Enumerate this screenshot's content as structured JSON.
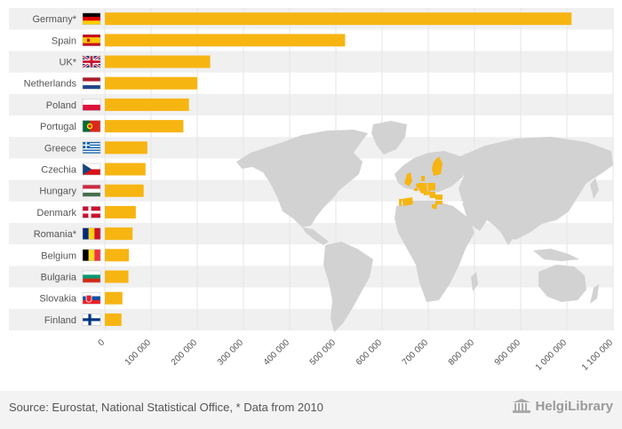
{
  "chart_data": {
    "type": "bar",
    "orientation": "horizontal",
    "categories": [
      "Germany*",
      "Spain",
      "UK*",
      "Netherlands",
      "Poland",
      "Portugal",
      "Greece",
      "Czechia",
      "Hungary",
      "Denmark",
      "Romania*",
      "Belgium",
      "Bulgaria",
      "Slovakia",
      "Finland"
    ],
    "values": [
      1010000,
      520000,
      228000,
      200000,
      182000,
      170000,
      92000,
      88000,
      84000,
      67000,
      60000,
      52000,
      51000,
      38000,
      36000
    ],
    "xlim": [
      0,
      1100000
    ],
    "xticks": [
      0,
      100000,
      200000,
      300000,
      400000,
      500000,
      600000,
      700000,
      800000,
      900000,
      1000000,
      1100000
    ],
    "xtick_labels": [
      "0",
      "100 000",
      "200 000",
      "300 000",
      "400 000",
      "500 000",
      "600 000",
      "700 000",
      "800 000",
      "900 000",
      "1 000 000",
      "1 100 000"
    ],
    "grid": true,
    "bar_color": "#f7b512",
    "band_color": "#f0f0f0",
    "grid_color": "#e6e6e6"
  },
  "flags": [
    {
      "country": "Germany",
      "type": "h",
      "colors": [
        "#000000",
        "#dd0000",
        "#ffce00"
      ]
    },
    {
      "country": "Spain",
      "type": "spain",
      "colors": [
        "#c60b1e",
        "#ffc400",
        "#c60b1e"
      ]
    },
    {
      "country": "UK",
      "type": "uk",
      "colors": [
        "#012169",
        "#ffffff",
        "#c8102e"
      ]
    },
    {
      "country": "Netherlands",
      "type": "h",
      "colors": [
        "#ae1c28",
        "#ffffff",
        "#21468b"
      ]
    },
    {
      "country": "Poland",
      "type": "h",
      "colors": [
        "#ffffff",
        "#dc143c"
      ]
    },
    {
      "country": "Portugal",
      "type": "portugal",
      "colors": [
        "#046a38",
        "#da291c",
        "#ffe900"
      ]
    },
    {
      "country": "Greece",
      "type": "greece",
      "colors": [
        "#0d5eaf",
        "#ffffff"
      ]
    },
    {
      "country": "Czechia",
      "type": "czech",
      "colors": [
        "#ffffff",
        "#d7141a",
        "#11457e"
      ]
    },
    {
      "country": "Hungary",
      "type": "h",
      "colors": [
        "#cd2a3e",
        "#ffffff",
        "#436f4d"
      ]
    },
    {
      "country": "Denmark",
      "type": "nordic",
      "colors": [
        "#c8102e",
        "#ffffff"
      ]
    },
    {
      "country": "Romania",
      "type": "v",
      "colors": [
        "#002b7f",
        "#fcd116",
        "#ce1126"
      ]
    },
    {
      "country": "Belgium",
      "type": "v",
      "colors": [
        "#000000",
        "#fdda24",
        "#ef3340"
      ]
    },
    {
      "country": "Bulgaria",
      "type": "h",
      "colors": [
        "#ffffff",
        "#00966e",
        "#d62612"
      ]
    },
    {
      "country": "Slovakia",
      "type": "slovakia",
      "colors": [
        "#ffffff",
        "#0b4ea2",
        "#ee1c25"
      ]
    },
    {
      "country": "Finland",
      "type": "nordic",
      "colors": [
        "#ffffff",
        "#003580"
      ]
    }
  ],
  "map": {
    "land_color": "#d2d2d2",
    "highlight_color": "#f7b512",
    "highlighted_countries": [
      "Germany",
      "Spain",
      "UK",
      "Netherlands",
      "Poland",
      "Portugal",
      "Greece",
      "Czechia",
      "Hungary",
      "Denmark",
      "Romania",
      "Belgium",
      "Bulgaria",
      "Slovakia",
      "Finland"
    ]
  },
  "footer": {
    "source": "Source: Eurostat, National Statistical Office, * Data from 2010",
    "logo_text": "HelgiLibrary"
  }
}
